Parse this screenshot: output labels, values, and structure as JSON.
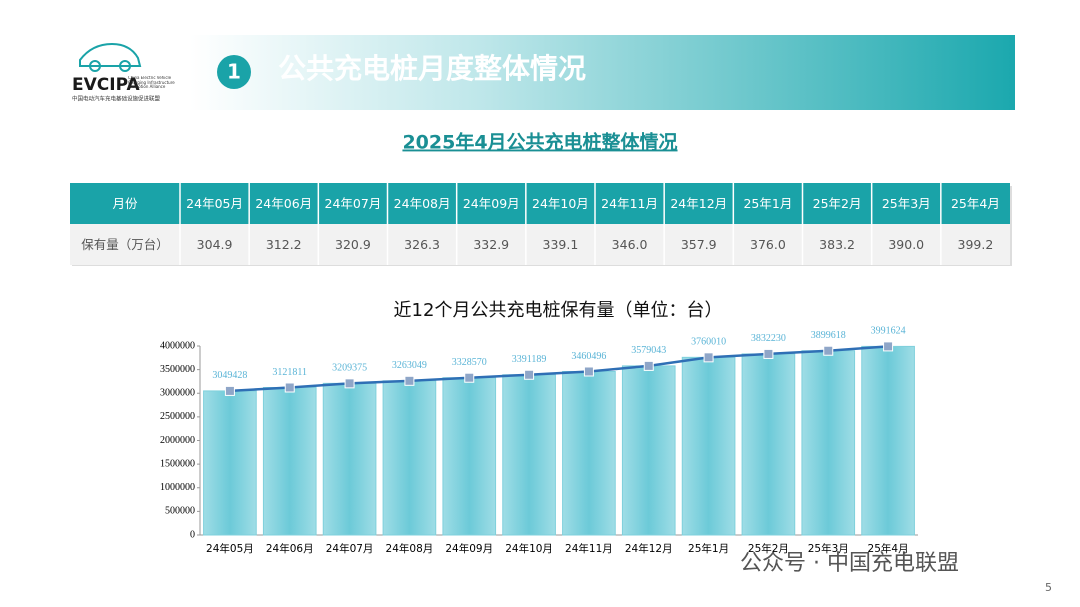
{
  "header": {
    "logo": "EVCIPA",
    "logo_en": "China Electric Vehicle Charging Infrastructure Promotion Alliance",
    "logo_cn": "中国电动汽车充电基础设施促进联盟",
    "section_number": "1",
    "title": "公共充电桩月度整体情况"
  },
  "table": {
    "title": "2025年4月公共充电桩整体情况",
    "rows": [
      [
        "月份",
        "24年05月",
        "24年06月",
        "24年07月",
        "24年08月",
        "24年09月",
        "24年10月",
        "24年11月",
        "24年12月",
        "25年1月",
        "25年2月",
        "25年3月",
        "25年4月"
      ],
      [
        "保有量（万台）",
        "304.9",
        "312.2",
        "320.9",
        "326.3",
        "332.9",
        "339.1",
        "346.0",
        "357.9",
        "376.0",
        "383.2",
        "390.0",
        "399.2"
      ]
    ]
  },
  "chart_data": {
    "type": "bar",
    "title": "近12个月公共充电桩保有量（单位：台）",
    "categories": [
      "24年05月",
      "24年06月",
      "24年07月",
      "24年08月",
      "24年09月",
      "24年10月",
      "24年11月",
      "24年12月",
      "25年1月",
      "25年2月",
      "25年3月",
      "25年4月"
    ],
    "values": [
      3049428,
      3121811,
      3209375,
      3263049,
      3328570,
      3391189,
      3460496,
      3579043,
      3760010,
      3832230,
      3899618,
      3991624
    ],
    "color": "#7fd0dc",
    "line_overlay": true,
    "line_color": "#2f6fb5",
    "label_color": "#5ab4d6",
    "ylim": [
      0,
      4000000
    ],
    "yticks": [
      0,
      500000,
      1000000,
      1500000,
      2000000,
      2500000,
      3000000,
      3500000,
      4000000
    ]
  },
  "footer": {
    "watermark": "公众号 · 中国充电联盟",
    "page": "5"
  }
}
